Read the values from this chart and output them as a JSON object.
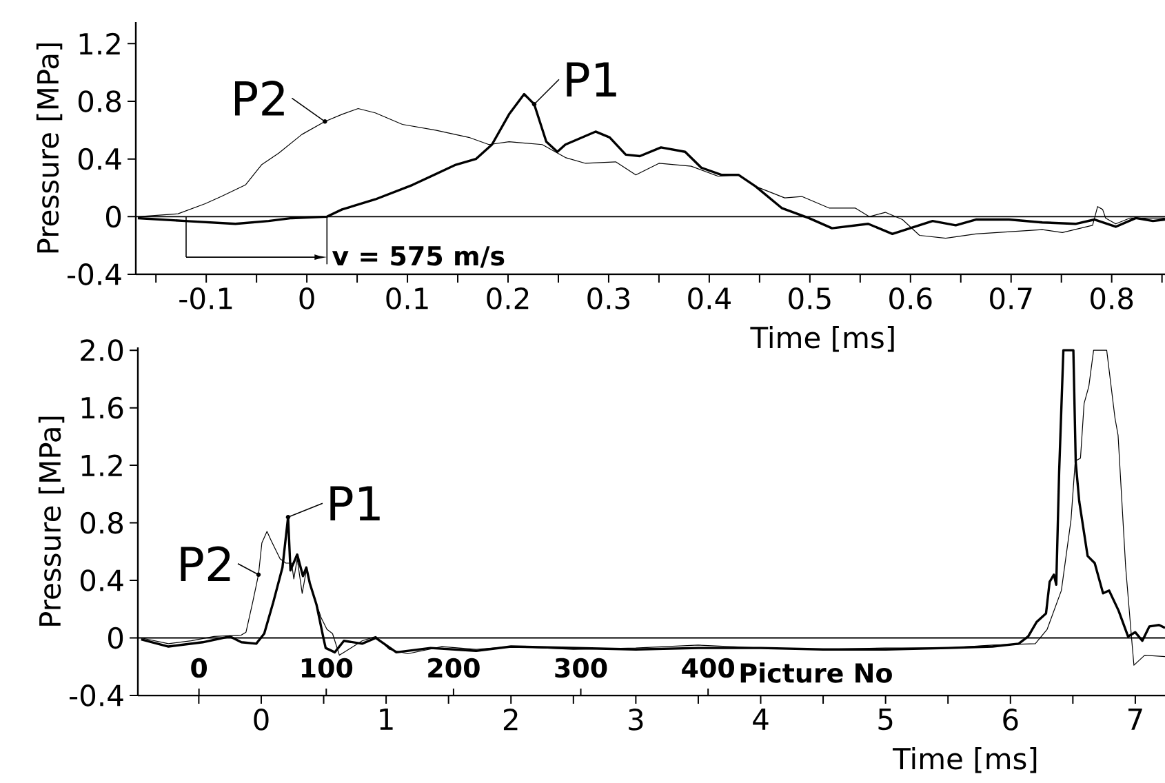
{
  "chart_data": [
    {
      "type": "line",
      "xlabel": "Time  [ms]",
      "ylabel": "Pressure [MPa]",
      "xlim": [
        -0.17,
        0.853
      ],
      "ylim": [
        -0.4,
        1.35
      ],
      "xticks": [
        {
          "value": -0.15,
          "label": null
        },
        -0.1,
        {
          "value": -0.05,
          "label": null
        },
        0,
        {
          "value": 0.05,
          "label": null
        },
        0.1,
        {
          "value": 0.15,
          "label": null
        },
        0.2,
        {
          "value": 0.25,
          "label": null
        },
        0.3,
        {
          "value": 0.35,
          "label": null
        },
        0.4,
        {
          "value": 0.45,
          "label": null
        },
        0.5,
        {
          "value": 0.55,
          "label": null
        },
        0.6,
        {
          "value": 0.65,
          "label": null
        },
        0.7,
        {
          "value": 0.75,
          "label": null
        },
        0.8,
        {
          "value": 0.85,
          "label": null
        }
      ],
      "yticks": [
        -0.4,
        0,
        0.4,
        0.8,
        1.2
      ],
      "ref_lines": [
        {
          "axis": "y",
          "value": 0
        },
        {
          "axis": "x",
          "value": -0.12
        },
        {
          "axis": "x",
          "value": 0.02
        }
      ],
      "annotations": [
        {
          "text": "v = 575 m/s",
          "x": 0.02,
          "y": -0.28
        }
      ],
      "series": [
        {
          "name": "P1",
          "color": "#000000",
          "x": [
            -0.168,
            -0.121,
            -0.071,
            -0.038,
            -0.015,
            0.02,
            0.035,
            0.068,
            0.105,
            0.148,
            0.168,
            0.184,
            0.201,
            0.216,
            0.226,
            0.238,
            0.249,
            0.257,
            0.287,
            0.301,
            0.317,
            0.331,
            0.352,
            0.376,
            0.392,
            0.412,
            0.429,
            0.446,
            0.472,
            0.499,
            0.522,
            0.558,
            0.582,
            0.622,
            0.645,
            0.665,
            0.698,
            0.731,
            0.764,
            0.783,
            0.804,
            0.824,
            0.841,
            0.853
          ],
          "values": [
            -0.01,
            -0.03,
            -0.05,
            -0.03,
            -0.01,
            0,
            0.05,
            0.12,
            0.22,
            0.36,
            0.4,
            0.5,
            0.71,
            0.85,
            0.78,
            0.52,
            0.45,
            0.5,
            0.59,
            0.55,
            0.43,
            0.42,
            0.48,
            0.45,
            0.34,
            0.29,
            0.29,
            0.21,
            0.06,
            -0.01,
            -0.08,
            -0.05,
            -0.12,
            -0.03,
            -0.06,
            -0.02,
            -0.02,
            -0.04,
            -0.05,
            -0.02,
            -0.07,
            -0.01,
            -0.03,
            -0.02
          ]
        },
        {
          "name": "P2",
          "color": "#000000",
          "x": [
            -0.168,
            -0.128,
            -0.101,
            -0.085,
            -0.061,
            -0.045,
            -0.028,
            -0.005,
            0.018,
            0.035,
            0.051,
            0.068,
            0.095,
            0.128,
            0.161,
            0.181,
            0.201,
            0.234,
            0.257,
            0.277,
            0.307,
            0.327,
            0.35,
            0.382,
            0.409,
            0.429,
            0.446,
            0.475,
            0.492,
            0.519,
            0.545,
            0.559,
            0.575,
            0.592,
            0.609,
            0.635,
            0.665,
            0.731,
            0.751,
            0.781,
            0.786,
            0.791,
            0.794,
            0.804,
            0.818,
            0.853
          ],
          "values": [
            0,
            0.02,
            0.09,
            0.14,
            0.22,
            0.36,
            0.44,
            0.57,
            0.66,
            0.71,
            0.75,
            0.72,
            0.64,
            0.6,
            0.55,
            0.5,
            0.52,
            0.5,
            0.41,
            0.37,
            0.38,
            0.29,
            0.37,
            0.35,
            0.28,
            0.29,
            0.21,
            0.13,
            0.14,
            0.06,
            0.06,
            0,
            0.03,
            -0.02,
            -0.13,
            -0.15,
            -0.12,
            -0.09,
            -0.11,
            -0.06,
            0.07,
            0.05,
            -0.01,
            -0.05,
            -0.01,
            -0.01
          ]
        }
      ]
    },
    {
      "type": "line",
      "xlabel": "Time [ms]",
      "ylabel": "Pressure [MPa]",
      "x2label": "Picture No",
      "xlim": [
        -0.988,
        7.238
      ],
      "ylim": [
        -0.4,
        2.02
      ],
      "x2lim": [
        -48,
        759
      ],
      "xticks": [
        {
          "value": -0.5,
          "label": null
        },
        0,
        {
          "value": 0.5,
          "label": null
        },
        1,
        {
          "value": 1.5,
          "label": null
        },
        2,
        {
          "value": 2.5,
          "label": null
        },
        3,
        {
          "value": 3.5,
          "label": null
        },
        4,
        {
          "value": 4.5,
          "label": null
        },
        5,
        {
          "value": 5.5,
          "label": null
        },
        6,
        {
          "value": 6.5,
          "label": null
        },
        7
      ],
      "yticks": [
        -0.4,
        0,
        0.4,
        0.8,
        1.2,
        1.6,
        {
          "value": 2,
          "label": "2.0"
        }
      ],
      "x2ticks": [
        0,
        100,
        200,
        300,
        400
      ],
      "ref_lines": [
        {
          "axis": "y",
          "value": 0
        }
      ],
      "series": [
        {
          "name": "P1",
          "color": "#000000",
          "x": [
            -0.962,
            -0.743,
            -0.469,
            -0.25,
            -0.159,
            -0.04,
            0.024,
            0.097,
            0.17,
            0.215,
            0.234,
            0.288,
            0.334,
            0.361,
            0.389,
            0.443,
            0.498,
            0.516,
            0.589,
            0.662,
            0.808,
            0.918,
            1.082,
            1.356,
            1.721,
            2.0,
            2.5,
            3.0,
            3.5,
            4.0,
            4.5,
            5.0,
            5.5,
            5.856,
            6.066,
            6.142,
            6.209,
            6.285,
            6.314,
            6.348,
            6.367,
            6.39,
            6.424,
            6.504,
            6.523,
            6.551,
            6.618,
            6.675,
            6.742,
            6.79,
            6.866,
            6.942,
            6.999,
            7.056,
            7.113,
            7.19,
            7.238
          ],
          "values": [
            -0.01,
            -0.06,
            -0.03,
            0.01,
            -0.03,
            -0.04,
            0.03,
            0.25,
            0.49,
            0.84,
            0.47,
            0.58,
            0.43,
            0.49,
            0.38,
            0.23,
            0,
            -0.07,
            -0.1,
            -0.02,
            -0.04,
            0,
            -0.1,
            -0.07,
            -0.09,
            -0.06,
            -0.07,
            -0.08,
            -0.07,
            -0.07,
            -0.08,
            -0.08,
            -0.07,
            -0.06,
            -0.04,
            0.01,
            0.11,
            0.17,
            0.39,
            0.44,
            0.37,
            1.15,
            2.0,
            2.0,
            1.22,
            0.95,
            0.57,
            0.52,
            0.31,
            0.33,
            0.19,
            0.01,
            0.04,
            -0.02,
            0.08,
            0.09,
            0.07
          ]
        },
        {
          "name": "P2",
          "color": "#000000",
          "x": [
            -0.962,
            -0.743,
            -0.56,
            -0.378,
            -0.159,
            -0.122,
            -0.068,
            -0.022,
            0.005,
            0.046,
            0.078,
            0.151,
            0.197,
            0.243,
            0.261,
            0.288,
            0.328,
            0.361,
            0.425,
            0.48,
            0.526,
            0.571,
            0.626,
            0.717,
            0.808,
            0.918,
            1.027,
            1.173,
            1.447,
            1.721,
            2.0,
            2.5,
            3.0,
            3.5,
            4.0,
            4.5,
            5.0,
            5.5,
            5.856,
            6.199,
            6.294,
            6.408,
            6.485,
            6.519,
            6.561,
            6.59,
            6.628,
            6.666,
            6.771,
            6.837,
            6.862,
            6.923,
            6.97,
            6.989,
            7.075,
            7.238
          ],
          "values": [
            0,
            -0.04,
            -0.02,
            0.01,
            0.02,
            0.04,
            0.25,
            0.44,
            0.66,
            0.74,
            0.68,
            0.55,
            0.52,
            0.52,
            0.41,
            0.55,
            0.31,
            0.47,
            0.28,
            0.14,
            0.06,
            0.03,
            -0.12,
            -0.07,
            -0.02,
            0.01,
            -0.08,
            -0.11,
            -0.06,
            -0.08,
            -0.06,
            -0.08,
            -0.07,
            -0.05,
            -0.07,
            -0.08,
            -0.07,
            -0.07,
            -0.05,
            -0.04,
            0.06,
            0.33,
            0.82,
            1.23,
            1.25,
            1.63,
            1.75,
            2.0,
            2.0,
            1.53,
            1.41,
            0.49,
            0,
            -0.19,
            -0.12,
            -0.13
          ]
        }
      ]
    }
  ]
}
